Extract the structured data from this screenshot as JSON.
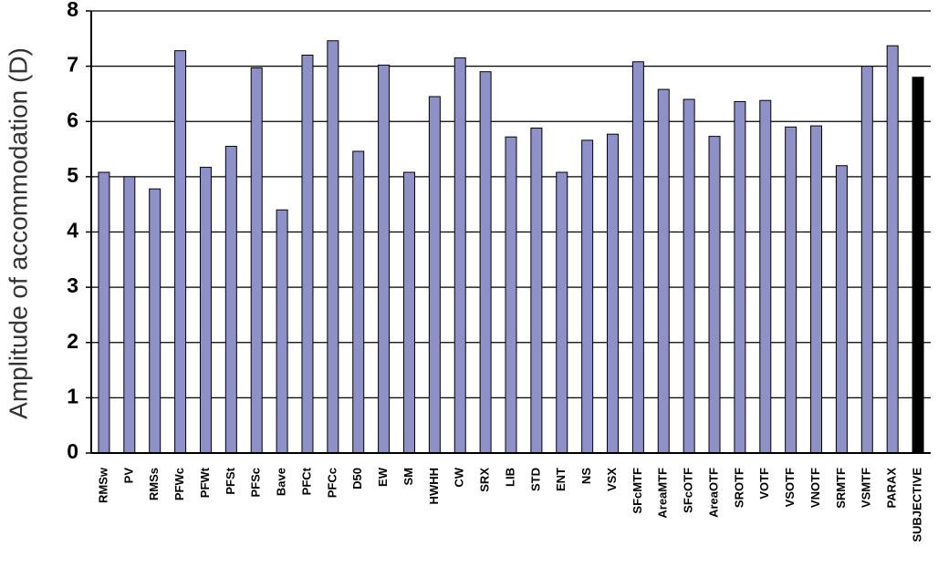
{
  "chart_data": {
    "type": "bar",
    "y_label": "Amplitude of accommodation (D)",
    "categories": [
      "RMSw",
      "PV",
      "RMSs",
      "PFWc",
      "PFWt",
      "PFSt",
      "PFSc",
      "Bave",
      "PFCt",
      "PFCc",
      "D50",
      "EW",
      "SM",
      "HWHH",
      "CW",
      "SRX",
      "LIB",
      "STD",
      "ENT",
      "NS",
      "VSX",
      "SFcMTF",
      "AreaMTF",
      "SFcOTF",
      "AreaOTF",
      "SROTF",
      "VOTF",
      "VSOTF",
      "VNOTF",
      "SRMTF",
      "VSMTF",
      "PARAX",
      "SUBJECTIVE"
    ],
    "values": [
      5.08,
      5.0,
      4.78,
      7.28,
      5.17,
      5.55,
      6.97,
      4.4,
      7.2,
      7.46,
      5.46,
      7.02,
      5.08,
      6.45,
      7.15,
      6.9,
      5.72,
      5.88,
      5.08,
      5.66,
      5.77,
      7.08,
      6.58,
      6.4,
      5.73,
      6.36,
      6.38,
      5.9,
      5.92,
      5.2,
      7.0,
      7.37,
      6.8
    ],
    "colors": [
      "#8e90c8",
      "#8e90c8",
      "#8e90c8",
      "#8e90c8",
      "#8e90c8",
      "#8e90c8",
      "#8e90c8",
      "#8e90c8",
      "#8e90c8",
      "#8e90c8",
      "#8e90c8",
      "#8e90c8",
      "#8e90c8",
      "#8e90c8",
      "#8e90c8",
      "#8e90c8",
      "#8e90c8",
      "#8e90c8",
      "#8e90c8",
      "#8e90c8",
      "#8e90c8",
      "#8e90c8",
      "#8e90c8",
      "#8e90c8",
      "#8e90c8",
      "#8e90c8",
      "#8e90c8",
      "#8e90c8",
      "#8e90c8",
      "#8e90c8",
      "#8e90c8",
      "#8e90c8",
      "#000000"
    ],
    "ylim": [
      0,
      8
    ],
    "yticks": [
      0,
      1,
      2,
      3,
      4,
      5,
      6,
      7,
      8
    ],
    "grid": true
  }
}
